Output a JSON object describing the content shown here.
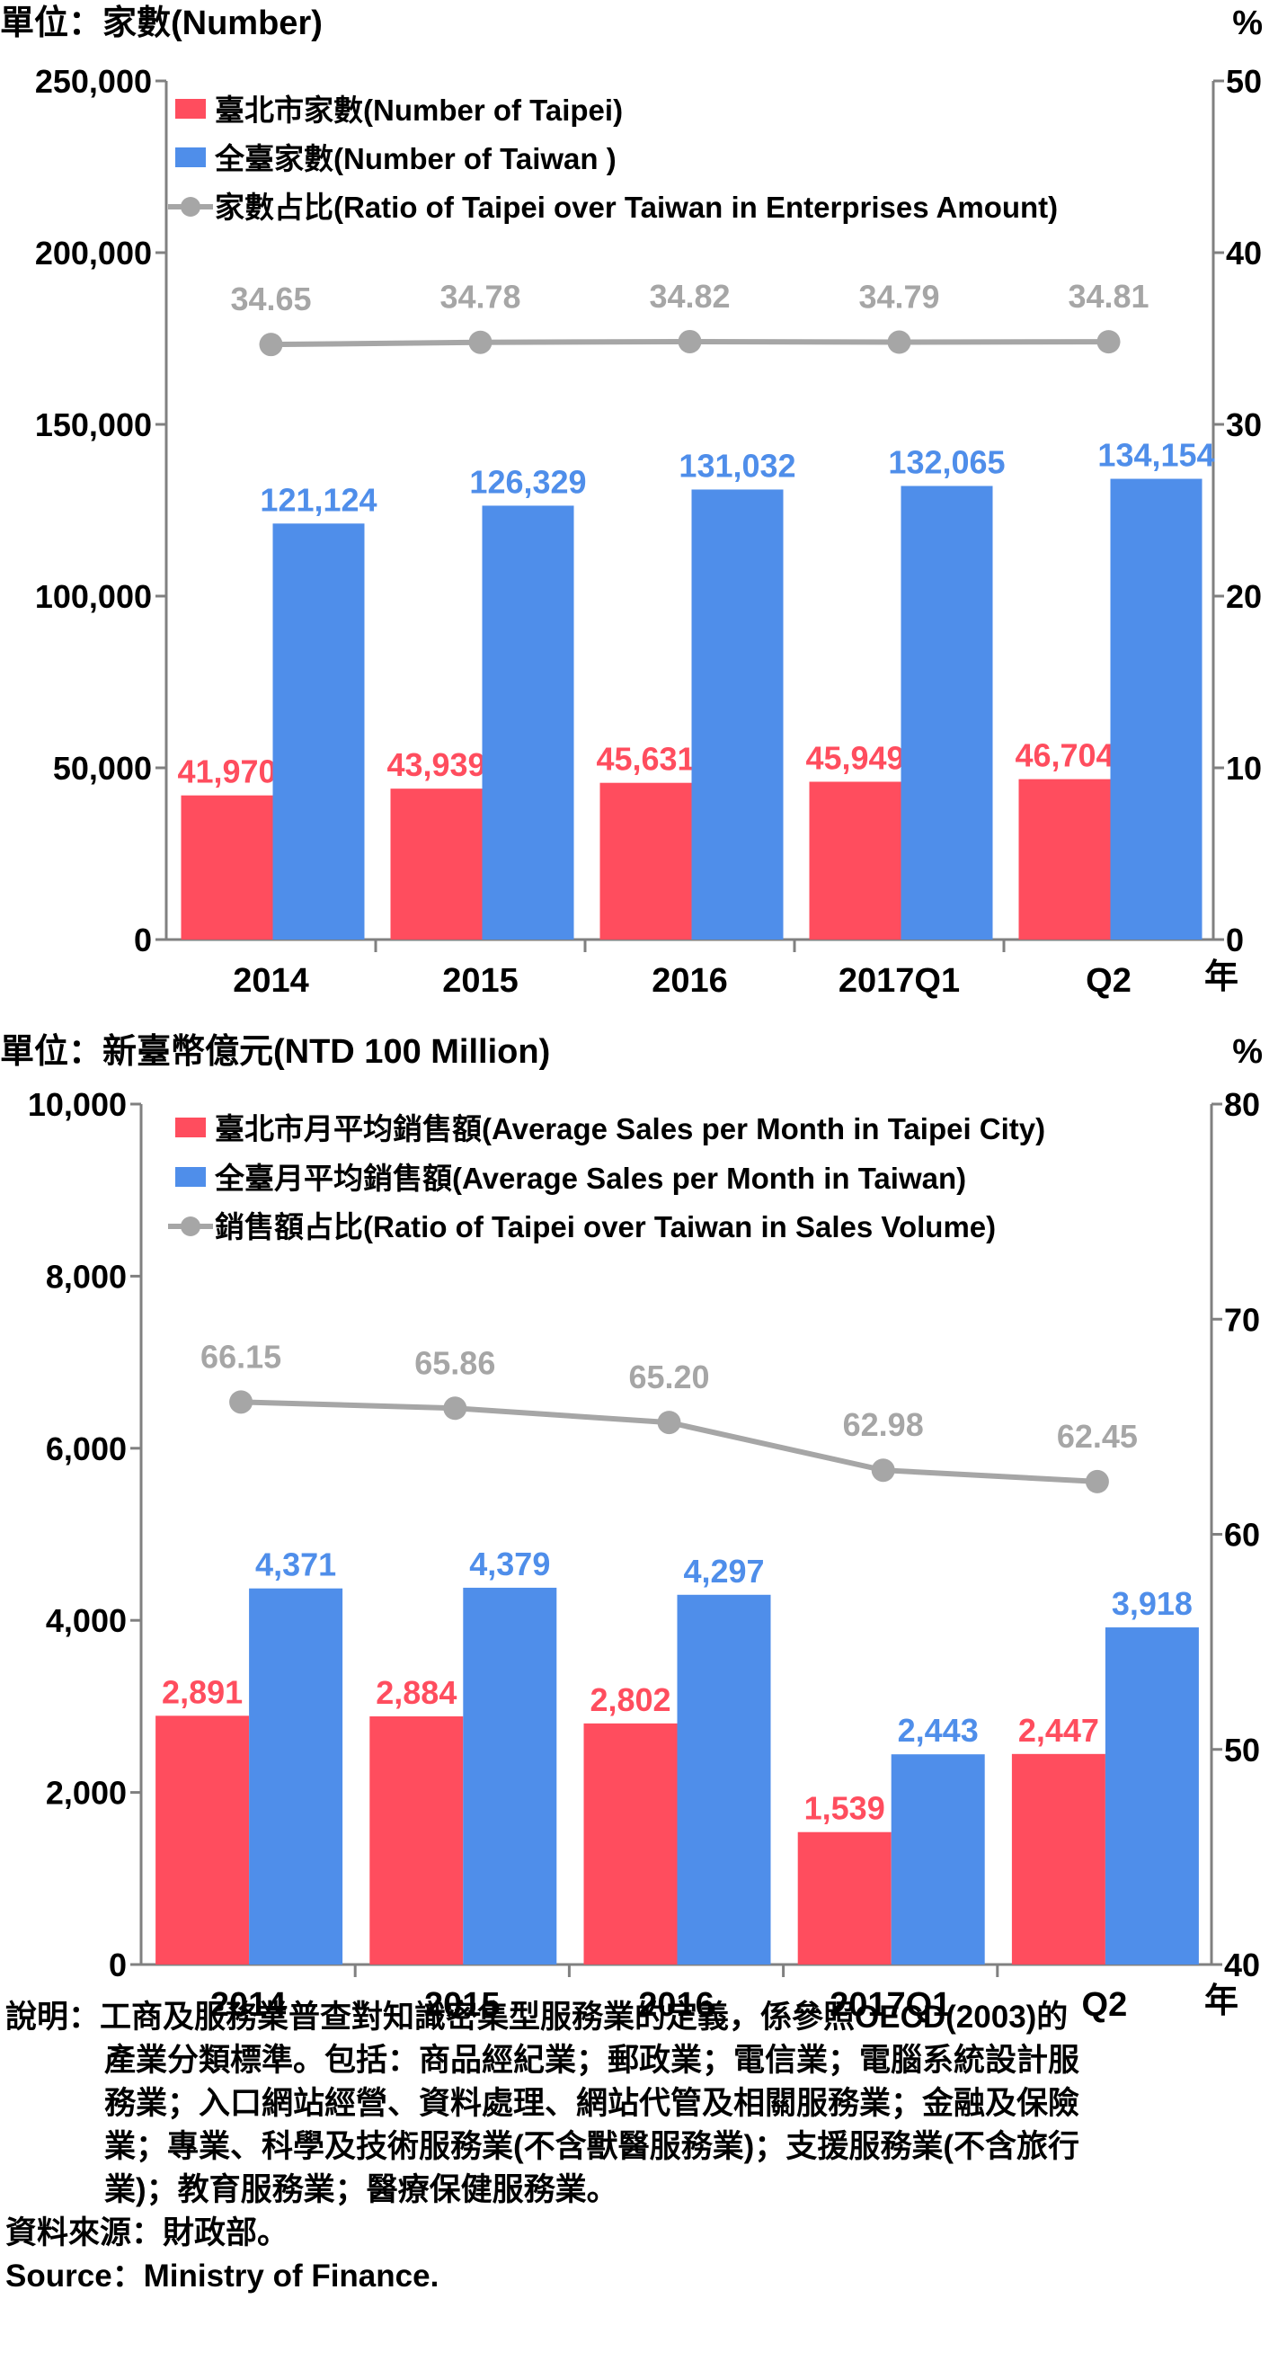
{
  "chart_data": [
    {
      "type": "bar",
      "unit_left": "單位：家數(Number)",
      "unit_right": "%",
      "year_mark": "年",
      "categories": [
        "2014",
        "2015",
        "2016",
        "2017Q1",
        "Q2"
      ],
      "yticks_left": [
        "0",
        "50,000",
        "100,000",
        "150,000",
        "200,000",
        "250,000"
      ],
      "yticks_right": [
        "0",
        "10",
        "20",
        "30",
        "40",
        "50"
      ],
      "ylim_left": [
        0,
        250000
      ],
      "ylim_right": [
        0,
        50
      ],
      "series": [
        {
          "name": "臺北市家數(Number of  Taipei)",
          "axis": "left",
          "kind": "bar",
          "color": "#FF4D5E",
          "values": [
            41970,
            43939,
            45631,
            45949,
            46704
          ],
          "labels": [
            "41,970",
            "43,939",
            "45,631",
            "45,949",
            "46,704"
          ]
        },
        {
          "name": "全臺家數(Number of Taiwan )",
          "axis": "left",
          "kind": "bar",
          "color": "#4F8EEA",
          "values": [
            121124,
            126329,
            131032,
            132065,
            134154
          ],
          "labels": [
            "121,124",
            "126,329",
            "131,032",
            "132,065",
            "134,154"
          ]
        },
        {
          "name": "家數占比(Ratio of Taipei over Taiwan in Enterprises Amount)",
          "axis": "right",
          "kind": "line",
          "color": "#A6A6A6",
          "values": [
            34.65,
            34.78,
            34.82,
            34.79,
            34.81
          ],
          "labels": [
            "34.65",
            "34.78",
            "34.82",
            "34.79",
            "34.81"
          ]
        }
      ]
    },
    {
      "type": "bar",
      "unit_left": "單位：新臺幣億元(NTD 100 Million)",
      "unit_right": "%",
      "year_mark": "年",
      "categories": [
        "2014",
        "2015",
        "2016",
        "2017Q1",
        "Q2"
      ],
      "yticks_left": [
        "0",
        "2,000",
        "4,000",
        "6,000",
        "8,000",
        "10,000"
      ],
      "yticks_right": [
        "40",
        "50",
        "60",
        "70",
        "80"
      ],
      "ylim_left": [
        0,
        10000
      ],
      "ylim_right": [
        40,
        80
      ],
      "series": [
        {
          "name": "臺北市月平均銷售額(Average Sales per Month in Taipei City)",
          "axis": "left",
          "kind": "bar",
          "color": "#FF4D5E",
          "values": [
            2891,
            2884,
            2802,
            1539,
            2447
          ],
          "labels": [
            "2,891",
            "2,884",
            "2,802",
            "1,539",
            "2,447"
          ]
        },
        {
          "name": "全臺月平均銷售額(Average Sales per Month in Taiwan)",
          "axis": "left",
          "kind": "bar",
          "color": "#4F8EEA",
          "values": [
            4371,
            4379,
            4297,
            2443,
            3918
          ],
          "labels": [
            "4,371",
            "4,379",
            "4,297",
            "2,443",
            "3,918"
          ]
        },
        {
          "name": "銷售額占比(Ratio of Taipei over Taiwan in Sales Volume)",
          "axis": "right",
          "kind": "line",
          "color": "#A6A6A6",
          "values": [
            66.15,
            65.86,
            65.2,
            62.98,
            62.45
          ],
          "labels": [
            "66.15",
            "65.86",
            "65.20",
            "62.98",
            "62.45"
          ]
        }
      ]
    }
  ],
  "notes": {
    "label": "說明：",
    "line1": "工商及服務業普查對知識密集型服務業的定義，係參照OECD(2003)的",
    "line2": "產業分類標準。包括：商品經紀業；郵政業；電信業；電腦系統設計服",
    "line3": "務業；入口網站經營、資料處理、網站代管及相關服務業；金融及保險",
    "line4": "業；專業、科學及技術服務業(不含獸醫服務業)；支援服務業(不含旅行",
    "line5": "業)；教育服務業；醫療保健服務業。",
    "source_zh": "資料來源：財政部。",
    "source_en": "Source：Ministry of Finance."
  }
}
